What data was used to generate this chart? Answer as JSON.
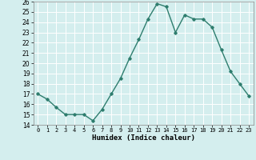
{
  "x": [
    0,
    1,
    2,
    3,
    4,
    5,
    6,
    7,
    8,
    9,
    10,
    11,
    12,
    13,
    14,
    15,
    16,
    17,
    18,
    19,
    20,
    21,
    22,
    23
  ],
  "y": [
    17,
    16.5,
    15.7,
    15,
    15,
    15,
    14.4,
    15.5,
    17,
    18.5,
    20.5,
    22.3,
    24.3,
    25.8,
    25.5,
    23,
    24.7,
    24.3,
    24.3,
    23.5,
    21.3,
    19.2,
    18,
    16.8
  ],
  "line_color": "#2e7d6e",
  "marker": "D",
  "marker_size": 1.8,
  "xlabel": "Humidex (Indice chaleur)",
  "ylim": [
    14,
    26
  ],
  "xlim": [
    -0.5,
    23.5
  ],
  "yticks": [
    14,
    15,
    16,
    17,
    18,
    19,
    20,
    21,
    22,
    23,
    24,
    25,
    26
  ],
  "xticks": [
    0,
    1,
    2,
    3,
    4,
    5,
    6,
    7,
    8,
    9,
    10,
    11,
    12,
    13,
    14,
    15,
    16,
    17,
    18,
    19,
    20,
    21,
    22,
    23
  ],
  "xtick_labels": [
    "0",
    "1",
    "2",
    "3",
    "4",
    "5",
    "6",
    "7",
    "8",
    "9",
    "10",
    "11",
    "12",
    "13",
    "14",
    "15",
    "16",
    "17",
    "18",
    "19",
    "20",
    "21",
    "22",
    "23"
  ],
  "background_color": "#d4eeee",
  "grid_color": "#ffffff",
  "line_width": 1.0,
  "ytick_fontsize": 5.5,
  "xtick_fontsize": 5.0,
  "xlabel_fontsize": 6.5
}
